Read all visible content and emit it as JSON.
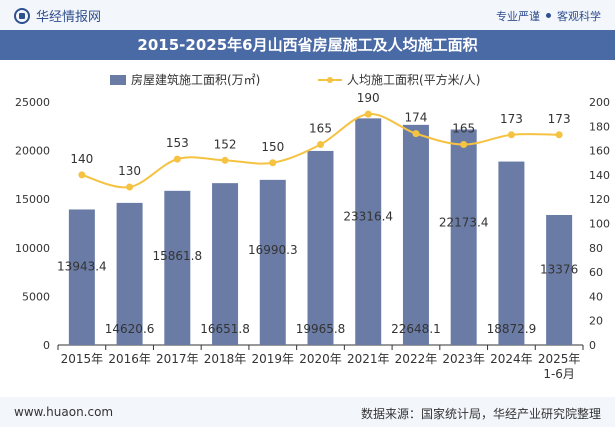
{
  "header": {
    "brand": "华经情报网",
    "slogan_left": "专业严谨",
    "slogan_right": "客观科学"
  },
  "title": "2015-2025年6月山西省房屋施工及人均施工面积",
  "footer": {
    "site": "www.huaon.com",
    "source": "数据来源：国家统计局，华经产业研究院整理"
  },
  "colors": {
    "bar": "#6a7ca6",
    "line": "#f5c242",
    "title_bg": "#4a6aa5"
  },
  "chart_data": {
    "type": "bar+line",
    "categories": [
      "2015年",
      "2016年",
      "2017年",
      "2018年",
      "2019年",
      "2020年",
      "2021年",
      "2022年",
      "2023年",
      "2024年",
      "2025年\n1-6月"
    ],
    "category_lines": [
      [
        "2015年"
      ],
      [
        "2016年"
      ],
      [
        "2017年"
      ],
      [
        "2018年"
      ],
      [
        "2019年"
      ],
      [
        "2020年"
      ],
      [
        "2021年"
      ],
      [
        "2022年"
      ],
      [
        "2023年"
      ],
      [
        "2024年"
      ],
      [
        "2025年",
        "1-6月"
      ]
    ],
    "series": [
      {
        "name": "房屋建筑施工面积(万㎡)",
        "type": "bar",
        "axis": "left",
        "values": [
          13943.4,
          14620.6,
          15861.8,
          16651.8,
          16990.3,
          19965.8,
          23316.4,
          22648.1,
          22173.4,
          18872.9,
          13376
        ],
        "labels": [
          "13943.4",
          "14620.6",
          "15861.8",
          "16651.8",
          "16990.3",
          "19965.8",
          "23316.4",
          "22648.1",
          "22173.4",
          "18872.9",
          "13376"
        ]
      },
      {
        "name": "人均施工面积(平方米/人)",
        "type": "line",
        "axis": "right",
        "values": [
          140,
          130,
          153,
          152,
          150,
          165,
          190,
          174,
          165,
          173,
          173
        ],
        "labels": [
          "140",
          "130",
          "153",
          "152",
          "150",
          "165",
          "190",
          "174",
          "165",
          "173",
          "173"
        ]
      }
    ],
    "y_left": {
      "min": 0,
      "max": 25000,
      "ticks": [
        0,
        5000,
        10000,
        15000,
        20000,
        25000
      ],
      "tick_labels": [
        "0",
        "5000",
        "10000",
        "15000",
        "20000",
        "25000"
      ]
    },
    "y_right": {
      "min": 0,
      "max": 200,
      "ticks": [
        0,
        20,
        40,
        60,
        80,
        100,
        120,
        140,
        160,
        180,
        200
      ],
      "tick_labels": [
        "0",
        "20",
        "40",
        "60",
        "80",
        "100",
        "120",
        "140",
        "160",
        "180",
        "200"
      ]
    },
    "legend_position": "top",
    "grid": false
  }
}
